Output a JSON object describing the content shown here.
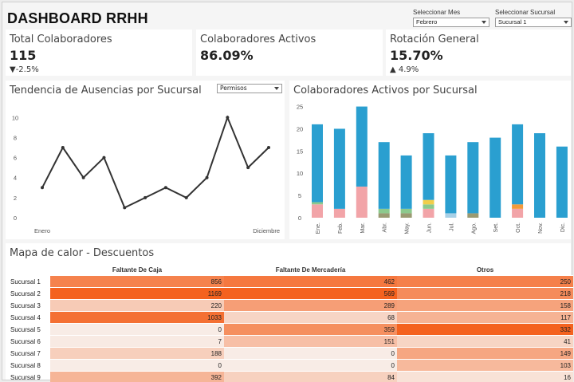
{
  "header": {
    "title": "DASHBOARD RRHH"
  },
  "filters": {
    "month": {
      "label": "Seleccionar Mes",
      "value": "Febrero"
    },
    "branch": {
      "label": "Seleccionar Sucursal",
      "value": "Sucursal 1"
    }
  },
  "kpis": [
    {
      "title": "Total Colaboradores",
      "value": "115",
      "delta": "-2.5%",
      "arrow": "▼"
    },
    {
      "title": "Colaboradores Activos",
      "value": "86.09%",
      "delta": "",
      "arrow": ""
    },
    {
      "title": "Rotación General",
      "value": "15.70%",
      "delta": "4.9%",
      "arrow": "▲"
    }
  ],
  "absences": {
    "title": "Tendencia de Ausencias por Sucursal",
    "dropdown": "Permisos",
    "start_label": "Enero",
    "end_label": "Diciembre"
  },
  "active": {
    "title": "Colaboradores Activos por Sucursal"
  },
  "heatmap": {
    "title": "Mapa de calor - Descuentos",
    "columns": [
      "Faltante De Caja",
      "Faltante De Mercadería",
      "Otros"
    ],
    "rows": [
      {
        "label": "Sucursal 1",
        "values": [
          856,
          462,
          250
        ]
      },
      {
        "label": "Sucursal 2",
        "values": [
          1169,
          569,
          218
        ]
      },
      {
        "label": "Sucursal 3",
        "values": [
          220,
          289,
          158
        ]
      },
      {
        "label": "Sucursal 4",
        "values": [
          1033,
          68,
          117
        ]
      },
      {
        "label": "Sucursal 5",
        "values": [
          0,
          359,
          332
        ]
      },
      {
        "label": "Sucursal 6",
        "values": [
          7,
          151,
          41
        ]
      },
      {
        "label": "Sucursal 7",
        "values": [
          188,
          0,
          149
        ]
      },
      {
        "label": "Sucursal 8",
        "values": [
          0,
          0,
          103
        ]
      },
      {
        "label": "Sucursal 9",
        "values": [
          392,
          84,
          16
        ]
      }
    ]
  },
  "colors": {
    "line": "#333333",
    "bar_blue": "#2a9fd0",
    "bar_pink": "#f2a4a8",
    "bar_green": "#8cc98d",
    "bar_olive": "#9a9a72",
    "bar_yellow": "#f1ce4a",
    "bar_orange": "#f29a3b",
    "bar_lightblue": "#a8d0e6",
    "heat_high": "#f4621f",
    "heat_low": "#f8ece6"
  },
  "chart_data": [
    {
      "type": "line",
      "title": "Tendencia de Ausencias por Sucursal",
      "x": [
        1,
        2,
        3,
        4,
        5,
        6,
        7,
        8,
        9,
        10,
        11,
        12
      ],
      "x_labels_shown": [
        "Enero",
        "Diciembre"
      ],
      "values": [
        3,
        7,
        4,
        6,
        1,
        2,
        3,
        2,
        4,
        10,
        5,
        7
      ],
      "yticks": [
        0,
        2,
        4,
        6,
        8,
        10
      ],
      "ylim": [
        0,
        10.5
      ]
    },
    {
      "type": "bar",
      "title": "Colaboradores Activos por Sucursal",
      "stacked": true,
      "categories": [
        "Ene.",
        "Feb.",
        "Mar.",
        "Abr.",
        "May.",
        "Jun.",
        "Jul.",
        "Ago.",
        "Set.",
        "Oct.",
        "Nov.",
        "Dic."
      ],
      "yticks": [
        0,
        5,
        10,
        15,
        20,
        25
      ],
      "ylim": [
        0,
        26
      ],
      "series": [
        {
          "name": "pink",
          "values": [
            3,
            2,
            7,
            0,
            0,
            2,
            0,
            0,
            0,
            2,
            0,
            0
          ]
        },
        {
          "name": "olive",
          "values": [
            0,
            0,
            0,
            1,
            1,
            0,
            0,
            1,
            0,
            0,
            0,
            0
          ]
        },
        {
          "name": "green",
          "values": [
            0.5,
            0,
            0,
            1,
            1,
            1,
            0,
            0,
            0,
            0,
            0,
            0
          ]
        },
        {
          "name": "yellow",
          "values": [
            0,
            0,
            0,
            0,
            0,
            1,
            0,
            0,
            0,
            0,
            0,
            0
          ]
        },
        {
          "name": "orange",
          "values": [
            0,
            0,
            0,
            0,
            0,
            0,
            0,
            0,
            0,
            1,
            0,
            0
          ]
        },
        {
          "name": "lightblue",
          "values": [
            0,
            0,
            0,
            0,
            0,
            0,
            1,
            0,
            0,
            0,
            0,
            0
          ]
        },
        {
          "name": "blue",
          "values": [
            17.5,
            18,
            18,
            15,
            12,
            15,
            13,
            16,
            18,
            18,
            19,
            16
          ]
        }
      ]
    },
    {
      "type": "heatmap",
      "title": "Mapa de calor - Descuentos",
      "columns": [
        "Faltante De Caja",
        "Faltante De Mercadería",
        "Otros"
      ],
      "rows": [
        "Sucursal 1",
        "Sucursal 2",
        "Sucursal 3",
        "Sucursal 4",
        "Sucursal 5",
        "Sucursal 6",
        "Sucursal 7",
        "Sucursal 8",
        "Sucursal 9"
      ],
      "values": [
        [
          856,
          462,
          250
        ],
        [
          1169,
          569,
          218
        ],
        [
          220,
          289,
          158
        ],
        [
          1033,
          68,
          117
        ],
        [
          0,
          359,
          332
        ],
        [
          7,
          151,
          41
        ],
        [
          188,
          0,
          149
        ],
        [
          0,
          0,
          103
        ],
        [
          392,
          84,
          16
        ]
      ]
    }
  ]
}
